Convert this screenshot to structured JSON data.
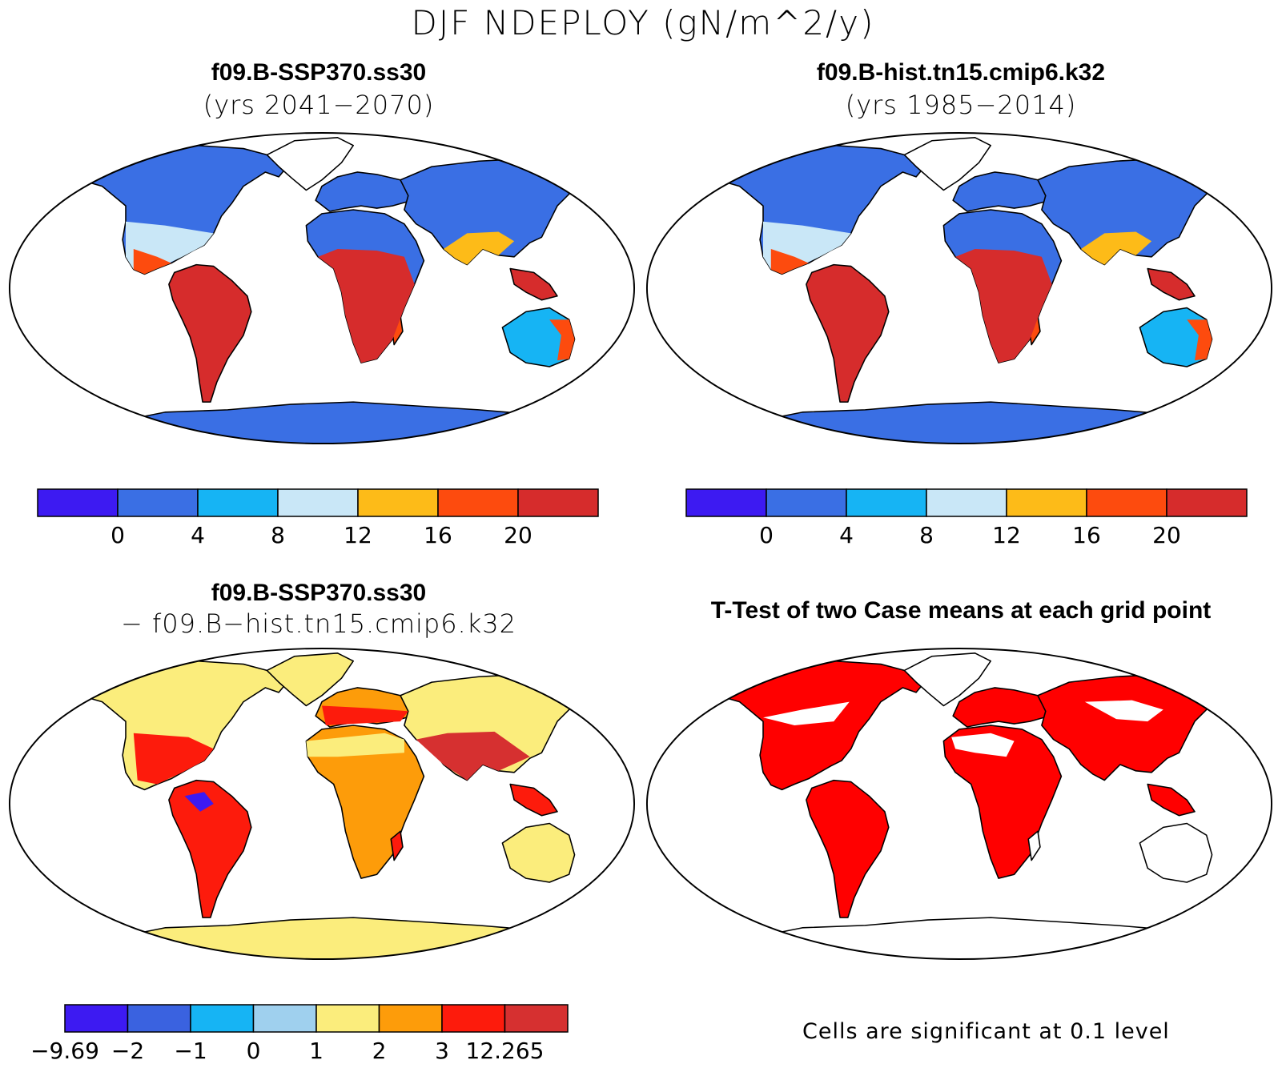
{
  "title": "DJF NDEPLOY (gN/m^2/y)",
  "panels": [
    {
      "id": "a",
      "title": "f09.B-SSP370.ss30",
      "subtitle": "(yrs 2041−2070)",
      "field": "case1"
    },
    {
      "id": "b",
      "title": "f09.B-hist.tn15.cmip6.k32",
      "subtitle": "(yrs 1985−2014)",
      "field": "case2"
    },
    {
      "id": "c",
      "title": "f09.B-SSP370.ss30",
      "subtitle": "− f09.B−hist.tn15.cmip6.k32",
      "field": "diff"
    },
    {
      "id": "d",
      "title": "T-Test of two Case means at each grid point",
      "subtitle": "",
      "field": "ttest"
    }
  ],
  "colorbars": {
    "abs": {
      "colors": [
        "#3d1af2",
        "#3a6fe4",
        "#16b4f4",
        "#c9e7f7",
        "#fdbb18",
        "#fd4b0e",
        "#d62c2c"
      ],
      "labels": [
        "0",
        "4",
        "8",
        "12",
        "16",
        "20"
      ]
    },
    "diff": {
      "colors": [
        "#3d1af2",
        "#3a62e0",
        "#16b4f4",
        "#9fd0ee",
        "#fbed7c",
        "#fd9c0a",
        "#fd1b0c",
        "#d63030"
      ],
      "labels": [
        "−9.69",
        "−2",
        "−1",
        "0",
        "1",
        "2",
        "3",
        "12.265"
      ]
    }
  },
  "ttest_note": "Cells are significant at 0.1 level",
  "ttest_color": "#ff0000"
}
